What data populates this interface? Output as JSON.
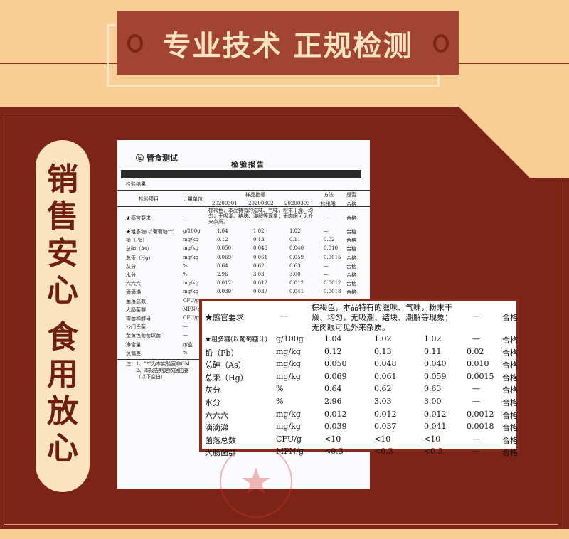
{
  "banner": {
    "title": "专业技术 正规检测"
  },
  "side_pill": {
    "chars": [
      "销",
      "售",
      "安",
      "心",
      "",
      "食",
      "用",
      "放",
      "心"
    ]
  },
  "colors": {
    "background": "#f9cd96",
    "banner": "#a24432",
    "panel": "#7b2417",
    "pill": "#fbe3bf",
    "accent_text": "#6e1f12"
  },
  "report": {
    "logo_text": "管食测试",
    "title": "检验报告",
    "results_label": "检验结果：",
    "headers": {
      "item": "检验项目",
      "unit": "计量单位",
      "batch": "样品批号",
      "batches": [
        "20200301",
        "20200302",
        "20200303"
      ],
      "method": "方法",
      "method2": "检出限",
      "pass": "是否",
      "pass2": "合格"
    },
    "rows": [
      {
        "item": "★感官要求",
        "unit": "—",
        "values": [
          "棕褐色，本品特有的滋味、气味，粉末干燥、均匀，无吸潮、结块、潮解等现象；无肉眼可见外来杂质。"
        ],
        "limit": "—",
        "result": "合格"
      },
      {
        "item": "★粗多糖(以葡萄糖计)",
        "unit": "g/100g",
        "values": [
          "1.04",
          "1.02",
          "1.02"
        ],
        "limit": "—",
        "result": "合格"
      },
      {
        "item": "铅（Pb）",
        "unit": "mg/kg",
        "values": [
          "0.12",
          "0.13",
          "0.11"
        ],
        "limit": "0.02",
        "result": "合格"
      },
      {
        "item": "总砷（As）",
        "unit": "mg/kg",
        "values": [
          "0.050",
          "0.048",
          "0.040"
        ],
        "limit": "0.010",
        "result": "合格"
      },
      {
        "item": "总汞（Hg）",
        "unit": "mg/kg",
        "values": [
          "0.069",
          "0.061",
          "0.059"
        ],
        "limit": "0.0015",
        "result": "合格"
      },
      {
        "item": "灰分",
        "unit": "%",
        "values": [
          "0.64",
          "0.62",
          "0.63"
        ],
        "limit": "—",
        "result": "合格"
      },
      {
        "item": "水分",
        "unit": "%",
        "values": [
          "2.96",
          "3.03",
          "3.00"
        ],
        "limit": "—",
        "result": "合格"
      },
      {
        "item": "六六六",
        "unit": "mg/kg",
        "values": [
          "0.012",
          "0.012",
          "0.012"
        ],
        "limit": "0.0012",
        "result": "合格"
      },
      {
        "item": "滴滴涕",
        "unit": "mg/kg",
        "values": [
          "0.039",
          "0.037",
          "0.041"
        ],
        "limit": "0.0018",
        "result": "合格"
      },
      {
        "item": "菌落总数",
        "unit": "CFU/g",
        "values": [
          "<10",
          "<10",
          "<10"
        ],
        "limit": "—",
        "result": "合格"
      },
      {
        "item": "大肠菌群",
        "unit": "MPN/g",
        "values": [
          "<0.3",
          "<0.3",
          "<0.3"
        ],
        "limit": "—",
        "result": "合格"
      },
      {
        "item": "霉菌和酵母",
        "unit": "CFU/g"
      },
      {
        "item": "沙门氏菌",
        "unit": "—"
      },
      {
        "item": "金黄色葡萄球菌",
        "unit": "—"
      },
      {
        "item": "净含量",
        "unit": "g/盒"
      },
      {
        "item": "负偏差",
        "unit": "%"
      }
    ],
    "notes": [
      "注：1、\"*\"为本实验室非CM",
      "2、本报告判定依据由委",
      "（以下空白）"
    ]
  }
}
